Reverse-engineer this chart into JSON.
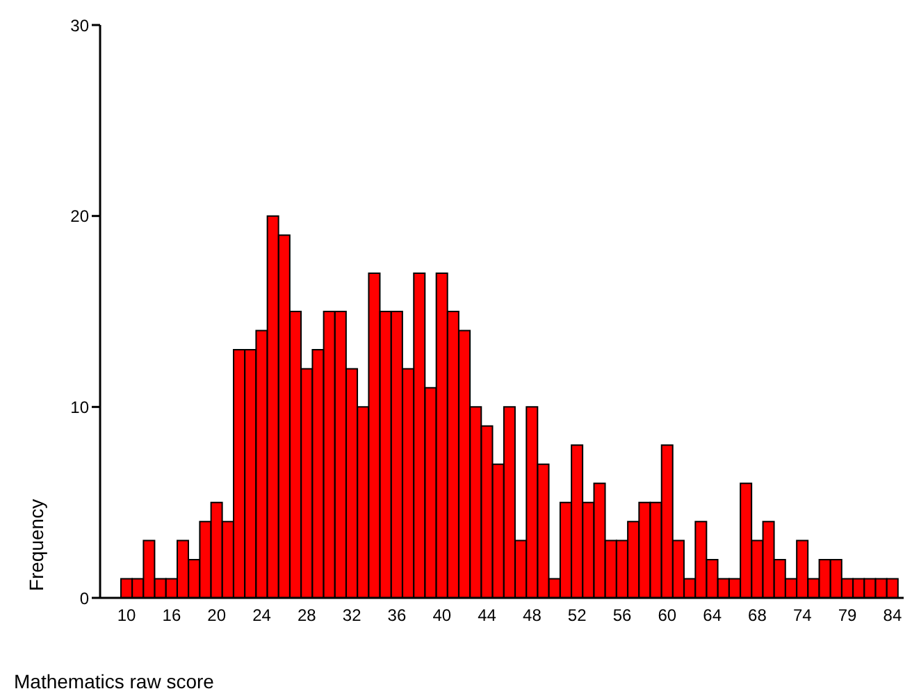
{
  "chart_data": {
    "type": "bar",
    "xlabel": "Mathematics raw score",
    "ylabel": "Frequency",
    "categories": [
      "10",
      null,
      null,
      null,
      "16",
      null,
      null,
      null,
      "20",
      null,
      null,
      null,
      "24",
      null,
      null,
      null,
      "28",
      null,
      null,
      null,
      "32",
      null,
      null,
      null,
      "36",
      null,
      null,
      null,
      "40",
      null,
      null,
      null,
      "44",
      null,
      null,
      null,
      "48",
      null,
      null,
      null,
      "52",
      null,
      null,
      null,
      "56",
      null,
      null,
      null,
      "60",
      null,
      null,
      null,
      "64",
      null,
      null,
      null,
      "68",
      null,
      null,
      null,
      "74",
      null,
      null,
      null,
      "79",
      null,
      null,
      null,
      "84"
    ],
    "values": [
      1,
      1,
      3,
      1,
      1,
      3,
      2,
      4,
      5,
      4,
      13,
      13,
      14,
      20,
      19,
      15,
      12,
      13,
      15,
      15,
      12,
      10,
      17,
      15,
      15,
      12,
      17,
      11,
      17,
      15,
      14,
      10,
      9,
      7,
      10,
      3,
      10,
      7,
      1,
      5,
      8,
      5,
      6,
      3,
      3,
      4,
      5,
      5,
      8,
      3,
      1,
      4,
      2,
      1,
      1,
      6,
      3,
      4,
      2,
      1,
      3,
      1,
      2,
      2,
      1,
      1,
      1,
      1,
      1
    ],
    "color": "#ff0000",
    "ylim": [
      0,
      30
    ],
    "yticks": [
      0,
      10,
      20,
      30
    ],
    "grid": false,
    "legend": false
  }
}
